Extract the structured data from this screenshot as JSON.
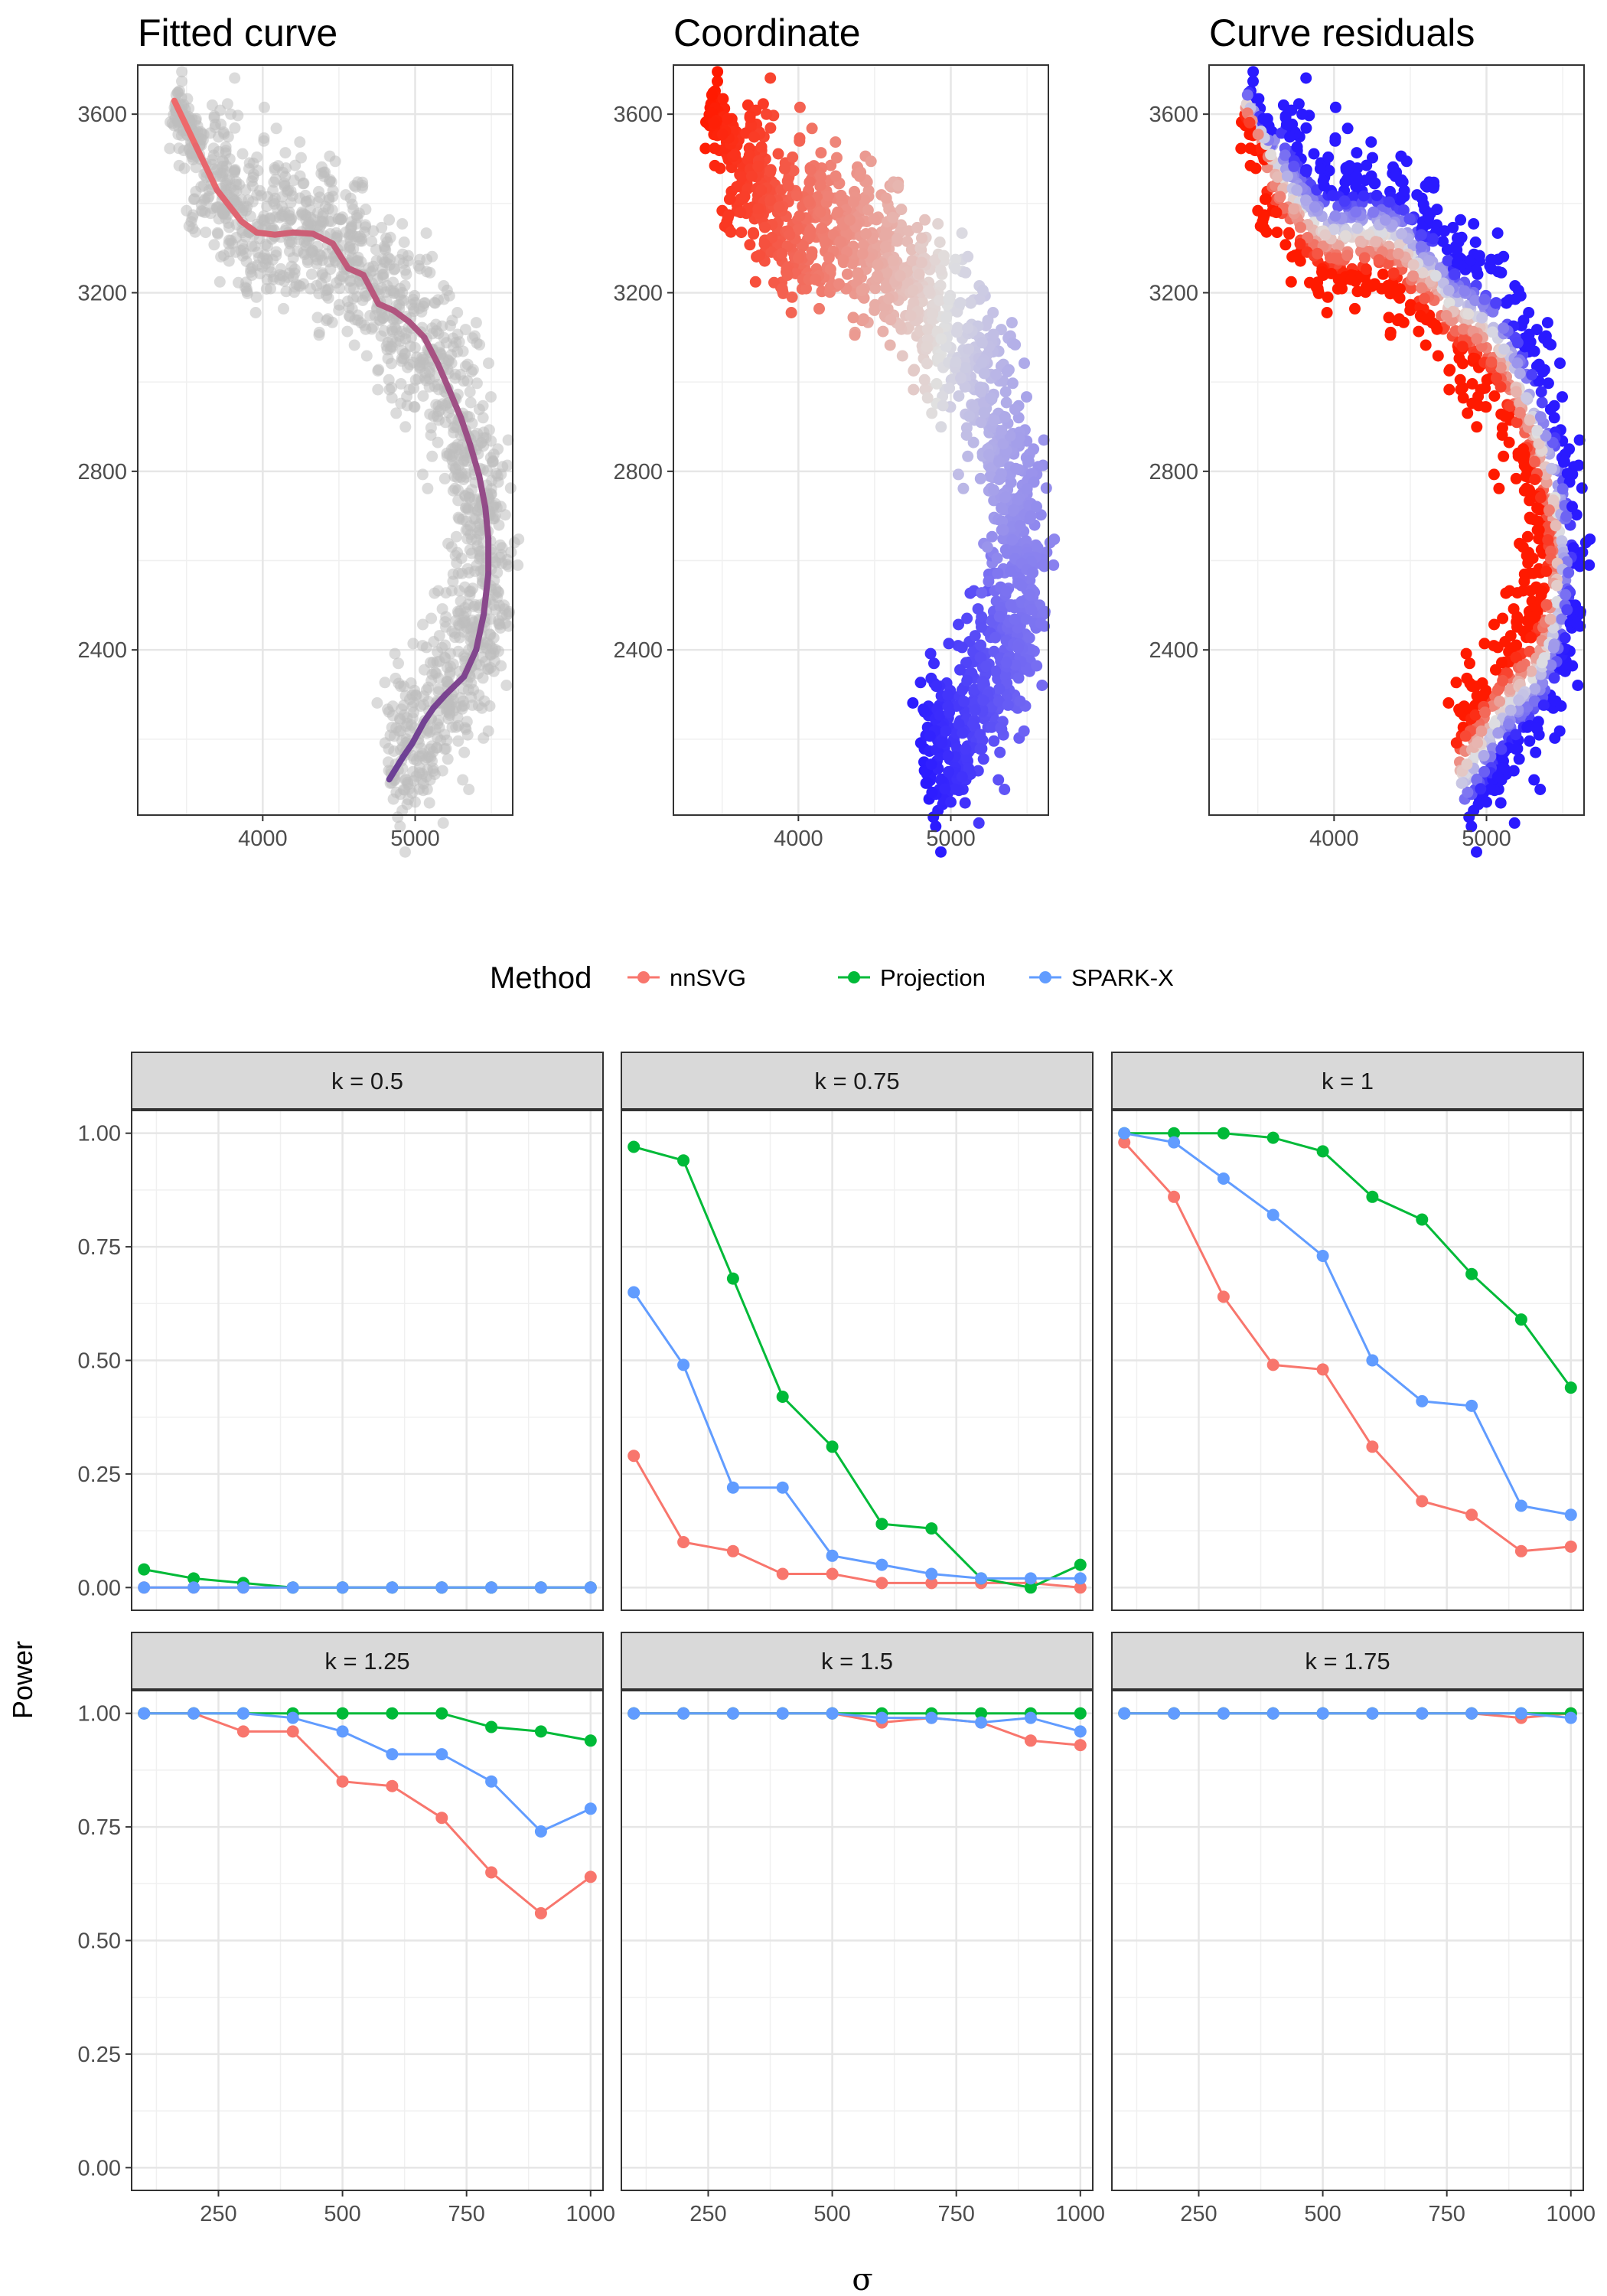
{
  "spatial_panels": {
    "titles": [
      "Fitted curve",
      "Coordinate",
      "Curve residuals"
    ],
    "x_ticks": [
      4000,
      5000
    ],
    "y_ticks": [
      2400,
      2800,
      3200,
      3600
    ],
    "xlim": [
      3180,
      5640
    ],
    "ylim": [
      2030,
      3710
    ],
    "point_color": "#bdbdbd",
    "gradient_colors": {
      "low": "#2a1aff",
      "mid": "#e0e0e0",
      "high": "#ff1a00"
    },
    "curve_colors": {
      "start": "#f26a6a",
      "end": "#6a3f96"
    },
    "curve": [
      [
        3420,
        3630
      ],
      [
        3560,
        3530
      ],
      [
        3700,
        3430
      ],
      [
        3860,
        3360
      ],
      [
        3960,
        3335
      ],
      [
        4080,
        3330
      ],
      [
        4200,
        3335
      ],
      [
        4330,
        3332
      ],
      [
        4460,
        3310
      ],
      [
        4560,
        3255
      ],
      [
        4660,
        3240
      ],
      [
        4760,
        3175
      ],
      [
        4860,
        3160
      ],
      [
        4960,
        3135
      ],
      [
        5060,
        3100
      ],
      [
        5150,
        3040
      ],
      [
        5220,
        2985
      ],
      [
        5300,
        2920
      ],
      [
        5360,
        2860
      ],
      [
        5420,
        2790
      ],
      [
        5460,
        2720
      ],
      [
        5480,
        2650
      ],
      [
        5480,
        2570
      ],
      [
        5450,
        2480
      ],
      [
        5400,
        2400
      ],
      [
        5320,
        2340
      ],
      [
        5200,
        2300
      ],
      [
        5120,
        2270
      ],
      [
        5060,
        2240
      ],
      [
        4980,
        2190
      ],
      [
        4920,
        2160
      ],
      [
        4830,
        2110
      ]
    ]
  },
  "legend": {
    "title": "Method",
    "items": [
      {
        "name": "nnSVG",
        "color": "#f8766d"
      },
      {
        "name": "Projection",
        "color": "#00ba38"
      },
      {
        "name": "SPARK-X",
        "color": "#619cff"
      }
    ]
  },
  "chart_data": {
    "type": "line",
    "facet_strip_labels": [
      "k =  0.5",
      "k =  0.75",
      "k =  1",
      "k =  1.25",
      "k =  1.5",
      "k =  1.75"
    ],
    "x": [
      100,
      200,
      300,
      400,
      500,
      600,
      700,
      800,
      900,
      1000
    ],
    "xlabel": "σ",
    "ylabel": "Power",
    "xlim": [
      75,
      1025
    ],
    "ylim": [
      -0.05,
      1.05
    ],
    "x_ticks": [
      250,
      500,
      750,
      1000
    ],
    "y_ticks": [
      "0.00",
      "0.25",
      "0.50",
      "0.75",
      "1.00"
    ],
    "grid": true,
    "legend_position": "top",
    "panels": [
      {
        "series": [
          {
            "name": "nnSVG",
            "values": [
              0.0,
              0.0,
              0.0,
              0.0,
              0.0,
              0.0,
              0.0,
              0.0,
              0.0,
              0.0
            ]
          },
          {
            "name": "Projection",
            "values": [
              0.04,
              0.02,
              0.01,
              0.0,
              0.0,
              0.0,
              0.0,
              0.0,
              0.0,
              0.0
            ]
          },
          {
            "name": "SPARK-X",
            "values": [
              0.0,
              0.0,
              0.0,
              0.0,
              0.0,
              0.0,
              0.0,
              0.0,
              0.0,
              0.0
            ]
          }
        ]
      },
      {
        "series": [
          {
            "name": "nnSVG",
            "values": [
              0.29,
              0.1,
              0.08,
              0.03,
              0.03,
              0.01,
              0.01,
              0.01,
              0.01,
              0.0
            ]
          },
          {
            "name": "Projection",
            "values": [
              0.97,
              0.94,
              0.68,
              0.42,
              0.31,
              0.14,
              0.13,
              0.02,
              0.0,
              0.05
            ]
          },
          {
            "name": "SPARK-X",
            "values": [
              0.65,
              0.49,
              0.22,
              0.22,
              0.07,
              0.05,
              0.03,
              0.02,
              0.02,
              0.02
            ]
          }
        ]
      },
      {
        "series": [
          {
            "name": "nnSVG",
            "values": [
              0.98,
              0.86,
              0.64,
              0.49,
              0.48,
              0.31,
              0.19,
              0.16,
              0.08,
              0.09
            ]
          },
          {
            "name": "Projection",
            "values": [
              1.0,
              1.0,
              1.0,
              0.99,
              0.96,
              0.86,
              0.81,
              0.69,
              0.59,
              0.44
            ]
          },
          {
            "name": "SPARK-X",
            "values": [
              1.0,
              0.98,
              0.9,
              0.82,
              0.73,
              0.5,
              0.41,
              0.4,
              0.18,
              0.16
            ]
          }
        ]
      },
      {
        "series": [
          {
            "name": "nnSVG",
            "values": [
              1.0,
              1.0,
              0.96,
              0.96,
              0.85,
              0.84,
              0.77,
              0.65,
              0.56,
              0.64
            ]
          },
          {
            "name": "Projection",
            "values": [
              1.0,
              1.0,
              1.0,
              1.0,
              1.0,
              1.0,
              1.0,
              0.97,
              0.96,
              0.94
            ]
          },
          {
            "name": "SPARK-X",
            "values": [
              1.0,
              1.0,
              1.0,
              0.99,
              0.96,
              0.91,
              0.91,
              0.85,
              0.74,
              0.79
            ]
          }
        ]
      },
      {
        "series": [
          {
            "name": "nnSVG",
            "values": [
              1.0,
              1.0,
              1.0,
              1.0,
              1.0,
              0.98,
              0.99,
              0.98,
              0.94,
              0.93
            ]
          },
          {
            "name": "Projection",
            "values": [
              1.0,
              1.0,
              1.0,
              1.0,
              1.0,
              1.0,
              1.0,
              1.0,
              1.0,
              1.0
            ]
          },
          {
            "name": "SPARK-X",
            "values": [
              1.0,
              1.0,
              1.0,
              1.0,
              1.0,
              0.99,
              0.99,
              0.98,
              0.99,
              0.96
            ]
          }
        ]
      },
      {
        "series": [
          {
            "name": "nnSVG",
            "values": [
              1.0,
              1.0,
              1.0,
              1.0,
              1.0,
              1.0,
              1.0,
              1.0,
              0.99,
              1.0
            ]
          },
          {
            "name": "Projection",
            "values": [
              1.0,
              1.0,
              1.0,
              1.0,
              1.0,
              1.0,
              1.0,
              1.0,
              1.0,
              1.0
            ]
          },
          {
            "name": "SPARK-X",
            "values": [
              1.0,
              1.0,
              1.0,
              1.0,
              1.0,
              1.0,
              1.0,
              1.0,
              1.0,
              0.99
            ]
          }
        ]
      }
    ]
  }
}
